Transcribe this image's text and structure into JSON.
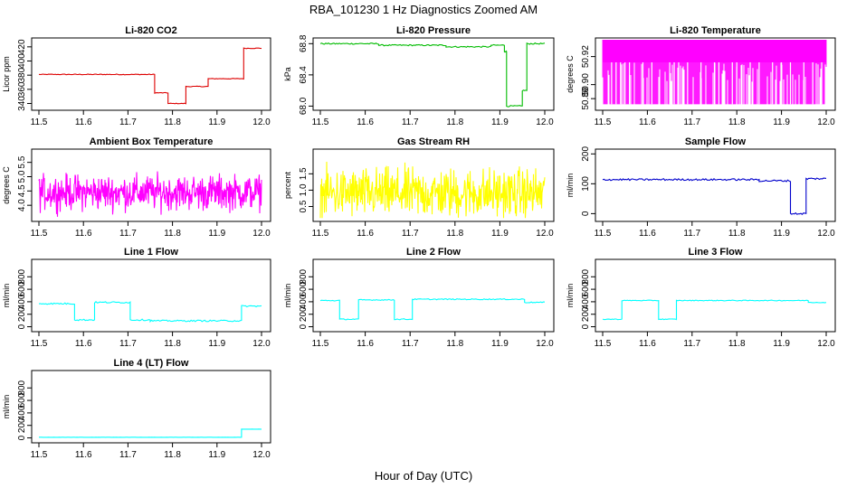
{
  "figure": {
    "title": "RBA_101230  1 Hz Diagnostics Zoomed AM",
    "xlabel": "Hour of Day (UTC)"
  },
  "chart_data": [
    {
      "type": "line",
      "title": "Li-820 CO2",
      "ylabel": "Licor ppm",
      "xlim": [
        11.5,
        12.0
      ],
      "ylim": [
        333,
        430
      ],
      "xticks": [
        11.5,
        11.6,
        11.7,
        11.8,
        11.9,
        12.0
      ],
      "yticks": [
        340,
        360,
        380,
        400,
        420
      ],
      "ytick_labels": [
        "340",
        "360",
        "380",
        "400",
        "420"
      ],
      "color": "#dd0000",
      "series": [
        {
          "kind": "step",
          "noise": 0.5,
          "x": [
            11.5,
            11.76,
            11.79,
            11.83,
            11.88,
            11.96,
            12.0
          ],
          "values": [
            381,
            355,
            340,
            364,
            375,
            418,
            368
          ]
        }
      ]
    },
    {
      "type": "line",
      "title": "Li-820 Pressure",
      "ylabel": "kPa",
      "xlim": [
        11.5,
        12.0
      ],
      "ylim": [
        67.97,
        68.85
      ],
      "xticks": [
        11.5,
        11.6,
        11.7,
        11.8,
        11.9,
        12.0
      ],
      "yticks": [
        68.0,
        68.4,
        68.8
      ],
      "ytick_labels": [
        "68.0",
        "68.4",
        "68.8"
      ],
      "color": "#00bb00",
      "series": [
        {
          "kind": "step",
          "noise": 0.008,
          "x": [
            11.5,
            11.63,
            11.78,
            11.88,
            11.91,
            11.915,
            11.95,
            11.96,
            12.0
          ],
          "values": [
            68.8,
            68.78,
            68.76,
            68.78,
            68.7,
            68.0,
            68.2,
            68.8,
            68.8
          ]
        }
      ]
    },
    {
      "type": "line",
      "title": "Li-820 Temperature",
      "ylabel": "degrees C",
      "xlim": [
        11.5,
        12.0
      ],
      "ylim": [
        50.883,
        50.932
      ],
      "xticks": [
        11.5,
        11.6,
        11.7,
        11.8,
        11.9,
        12.0
      ],
      "yticks": [
        50.89,
        50.9,
        50.92
      ],
      "ytick_labels": [
        "50.89",
        "50.90",
        "50.92"
      ],
      "color": "#ff00ff",
      "series": [
        {
          "kind": "fill",
          "x": [
            11.5,
            12.0
          ],
          "values": [
            50.886,
            50.932
          ]
        }
      ],
      "gaps": [
        11.52,
        11.53,
        11.54,
        11.55,
        11.56,
        11.59,
        11.61,
        11.65,
        11.66,
        11.67,
        11.69,
        11.72,
        11.75,
        11.76,
        11.79,
        11.8,
        11.83,
        11.85,
        11.88,
        11.9,
        11.92,
        11.95,
        11.97,
        11.99
      ]
    },
    {
      "type": "line",
      "title": "Ambient Box Temperature",
      "ylabel": "degrees C",
      "xlim": [
        11.5,
        12.0
      ],
      "ylim": [
        3.5,
        5.9
      ],
      "xticks": [
        11.5,
        11.6,
        11.7,
        11.8,
        11.9,
        12.0
      ],
      "yticks": [
        4.0,
        4.5,
        5.0,
        5.5
      ],
      "ytick_labels": [
        "4.0",
        "4.5",
        "5.0",
        "5.5"
      ],
      "color": "#ff00ff",
      "series": [
        {
          "kind": "noise",
          "x": [
            11.5,
            12.0
          ],
          "center": 4.45,
          "spread": 1.2
        }
      ]
    },
    {
      "type": "line",
      "title": "Gas Stream RH",
      "ylabel": "percent",
      "xlim": [
        11.5,
        12.0
      ],
      "ylim": [
        0.1,
        2.2
      ],
      "xticks": [
        11.5,
        11.6,
        11.7,
        11.8,
        11.9,
        12.0
      ],
      "yticks": [
        0.5,
        1.0,
        1.5
      ],
      "ytick_labels": [
        "0.5",
        "1.0",
        "1.5"
      ],
      "color": "#ffff00",
      "series": [
        {
          "kind": "noise",
          "x": [
            11.5,
            12.0
          ],
          "center": 0.9,
          "spread": 1.5
        }
      ]
    },
    {
      "type": "line",
      "title": "Sample Flow",
      "ylabel": "ml/min",
      "xlim": [
        11.5,
        12.0
      ],
      "ylim": [
        -20,
        210
      ],
      "xticks": [
        11.5,
        11.6,
        11.7,
        11.8,
        11.9,
        12.0
      ],
      "yticks": [
        0,
        100,
        200
      ],
      "ytick_labels": [
        "0",
        "100",
        "200"
      ],
      "color": "#0000cc",
      "series": [
        {
          "kind": "step",
          "noise": 3,
          "x": [
            11.5,
            11.7,
            11.85,
            11.92,
            11.955,
            12.0
          ],
          "values": [
            114,
            114,
            110,
            0,
            117,
            117
          ]
        }
      ]
    },
    {
      "type": "line",
      "title": "Line 1 Flow",
      "ylabel": "ml/min",
      "xlim": [
        11.5,
        12.0
      ],
      "ylim": [
        -50,
        1050
      ],
      "xticks": [
        11.5,
        11.6,
        11.7,
        11.8,
        11.9,
        12.0
      ],
      "yticks": [
        0,
        200,
        400,
        600,
        800
      ],
      "ytick_labels": [
        "0",
        "200",
        "400",
        "600",
        "800"
      ],
      "color": "#00ffff",
      "series": [
        {
          "kind": "step",
          "noise": 12,
          "x": [
            11.5,
            11.58,
            11.625,
            11.705,
            11.75,
            11.955,
            12.0
          ],
          "values": [
            370,
            110,
            390,
            110,
            95,
            330,
            330
          ]
        }
      ]
    },
    {
      "type": "line",
      "title": "Line 2 Flow",
      "ylabel": "ml/min",
      "xlim": [
        11.5,
        12.0
      ],
      "ylim": [
        -50,
        1050
      ],
      "xticks": [
        11.5,
        11.6,
        11.7,
        11.8,
        11.9,
        12.0
      ],
      "yticks": [
        0,
        200,
        400,
        600,
        800
      ],
      "ytick_labels": [
        "0",
        "200",
        "400",
        "600",
        "800"
      ],
      "color": "#00ffff",
      "series": [
        {
          "kind": "step",
          "noise": 8,
          "x": [
            11.5,
            11.543,
            11.585,
            11.665,
            11.705,
            11.955,
            12.0
          ],
          "values": [
            420,
            120,
            430,
            120,
            440,
            390,
            390
          ]
        }
      ]
    },
    {
      "type": "line",
      "title": "Line 3 Flow",
      "ylabel": "ml/min",
      "xlim": [
        11.5,
        12.0
      ],
      "ylim": [
        -50,
        1050
      ],
      "xticks": [
        11.5,
        11.6,
        11.7,
        11.8,
        11.9,
        12.0
      ],
      "yticks": [
        0,
        200,
        400,
        600,
        800
      ],
      "ytick_labels": [
        "0",
        "200",
        "400",
        "600",
        "800"
      ],
      "color": "#00ffff",
      "series": [
        {
          "kind": "step",
          "noise": 6,
          "x": [
            11.5,
            11.543,
            11.625,
            11.665,
            11.96,
            12.0
          ],
          "values": [
            120,
            420,
            120,
            420,
            390,
            390
          ]
        }
      ]
    },
    {
      "type": "line",
      "title": "Line 4 (LT) Flow",
      "ylabel": "ml/min",
      "xlim": [
        11.5,
        12.0
      ],
      "ylim": [
        -50,
        1050
      ],
      "xticks": [
        11.5,
        11.6,
        11.7,
        11.8,
        11.9,
        12.0
      ],
      "yticks": [
        0,
        200,
        400,
        600,
        800
      ],
      "ytick_labels": [
        "0",
        "200",
        "400",
        "600",
        "800"
      ],
      "color": "#00ffff",
      "series": [
        {
          "kind": "step",
          "noise": 1,
          "x": [
            11.5,
            11.955,
            12.0
          ],
          "values": [
            10,
            140,
            140
          ]
        }
      ]
    }
  ]
}
